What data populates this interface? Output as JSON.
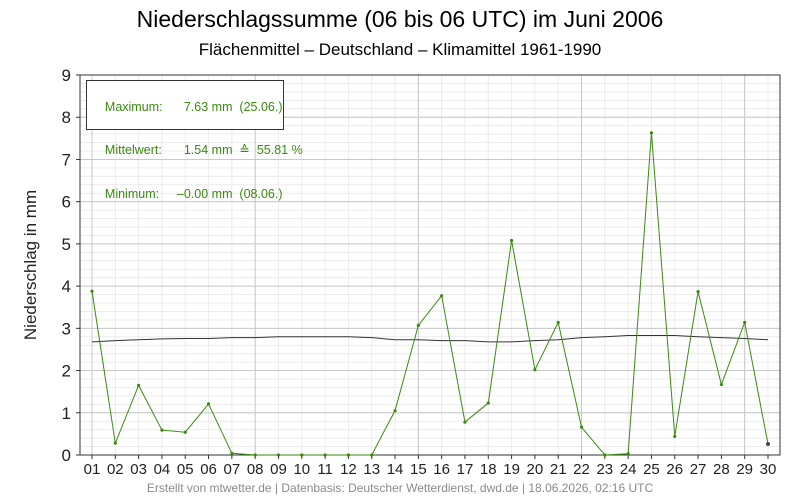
{
  "title": "Niederschlagssumme (06 bis 06 UTC) im Juni 2006",
  "subtitle": "Flächenmittel – Deutschland – Klimamittel 1961-1990",
  "footer": "Erstellt von mtwetter.de | Datenbasis: Deutscher Wetterdienst, dwd.de | 18.06.2026, 02:16 UTC",
  "legend": {
    "max_label": "Maximum:",
    "max_value": "  7.63 mm  (25.06.)",
    "mean_label": "Mittelwert:",
    "mean_value": "  1.54 mm  ≙  55.81 %",
    "min_label": "Minimum:",
    "min_value": "–0.00 mm  (08.06.)"
  },
  "colors": {
    "series": "#3a8a10",
    "clim": "#333333",
    "grid_major": "#c8c8c8",
    "grid_minor": "#ececec"
  },
  "chart_data": {
    "type": "line",
    "title": "Niederschlagssumme (06 bis 06 UTC) im Juni 2006",
    "ylabel": "Niederschlag in mm",
    "xlabel": "",
    "ylim": [
      0,
      9
    ],
    "yticks": [
      "0",
      "1",
      "2",
      "3",
      "4",
      "5",
      "6",
      "7",
      "8",
      "9"
    ],
    "categories": [
      "01",
      "02",
      "03",
      "04",
      "05",
      "06",
      "07",
      "08",
      "09",
      "10",
      "11",
      "12",
      "13",
      "14",
      "15",
      "16",
      "17",
      "18",
      "19",
      "20",
      "21",
      "22",
      "23",
      "24",
      "25",
      "26",
      "27",
      "28",
      "29",
      "30"
    ],
    "series": [
      {
        "values": [
          3.88,
          0.28,
          1.65,
          0.59,
          0.54,
          1.21,
          0.04,
          0.0,
          0.0,
          0.0,
          0.0,
          0.0,
          0.0,
          1.05,
          3.07,
          3.77,
          0.78,
          1.23,
          5.08,
          2.02,
          3.14,
          0.66,
          0.0,
          0.03,
          7.63,
          0.44,
          3.87,
          1.67,
          3.14,
          0.26
        ]
      },
      {
        "values": [
          2.68,
          2.71,
          2.73,
          2.75,
          2.76,
          2.76,
          2.78,
          2.78,
          2.8,
          2.8,
          2.8,
          2.8,
          2.78,
          2.73,
          2.73,
          2.71,
          2.71,
          2.68,
          2.68,
          2.71,
          2.73,
          2.78,
          2.8,
          2.83,
          2.83,
          2.83,
          2.8,
          2.78,
          2.76,
          2.73
        ]
      }
    ],
    "grid": true,
    "legend_position": "top-left"
  }
}
